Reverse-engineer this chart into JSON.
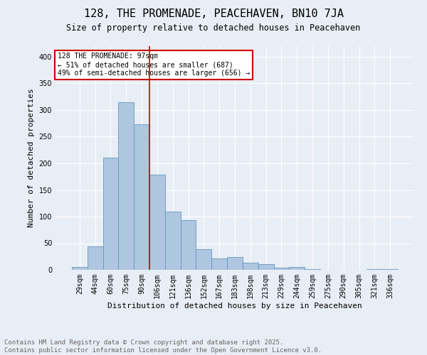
{
  "title": "128, THE PROMENADE, PEACEHAVEN, BN10 7JA",
  "subtitle": "Size of property relative to detached houses in Peacehaven",
  "xlabel": "Distribution of detached houses by size in Peacehaven",
  "ylabel": "Number of detached properties",
  "categories": [
    "29sqm",
    "44sqm",
    "60sqm",
    "75sqm",
    "90sqm",
    "106sqm",
    "121sqm",
    "136sqm",
    "152sqm",
    "167sqm",
    "183sqm",
    "198sqm",
    "213sqm",
    "229sqm",
    "244sqm",
    "259sqm",
    "275sqm",
    "290sqm",
    "305sqm",
    "321sqm",
    "336sqm"
  ],
  "values": [
    5,
    44,
    210,
    315,
    273,
    179,
    109,
    93,
    39,
    22,
    24,
    14,
    11,
    4,
    5,
    1,
    0,
    0,
    0,
    1,
    2
  ],
  "bar_color": "#aec6e0",
  "bar_edge_color": "#6699bb",
  "vline_x": 4.5,
  "vline_color": "#cc0000",
  "annotation_text": "128 THE PROMENADE: 97sqm\n← 51% of detached houses are smaller (687)\n49% of semi-detached houses are larger (656) →",
  "annotation_box_color": "#ffffff",
  "annotation_box_edge": "#cc0000",
  "background_color": "#e8eef5",
  "grid_color": "#ffffff",
  "footer_text": "Contains HM Land Registry data © Crown copyright and database right 2025.\nContains public sector information licensed under the Open Government Licence v3.0.",
  "ylim": [
    0,
    420
  ],
  "title_fontsize": 11,
  "subtitle_fontsize": 8.5,
  "axis_label_fontsize": 8,
  "tick_fontsize": 7,
  "footer_fontsize": 6.5
}
